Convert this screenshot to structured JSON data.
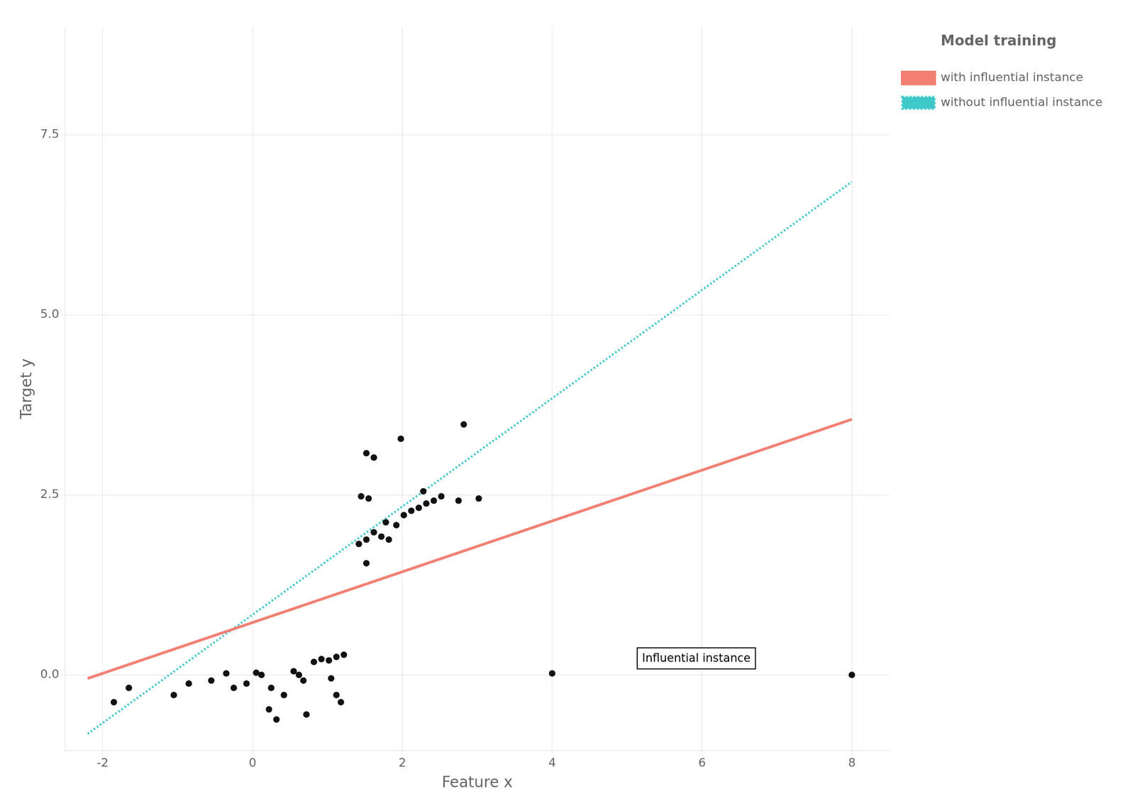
{
  "chart_data": {
    "type": "scatter",
    "xlabel": "Feature x",
    "ylabel": "Target y",
    "legend_title": "Model training",
    "legend": "right",
    "grid": true,
    "xlim": [
      -2.5,
      8.5
    ],
    "ylim": [
      -1.05,
      9.0
    ],
    "xticks": [
      -2,
      0,
      2,
      4,
      6,
      8
    ],
    "yticks": [
      {
        "value": 0,
        "label": "0.0"
      },
      2.5,
      {
        "value": 5,
        "label": "5.0"
      },
      7.5
    ],
    "series": [
      {
        "type": "scatter",
        "color": "#111111",
        "marker": "circle",
        "values": [
          [
            -1.85,
            -0.38
          ],
          [
            -1.65,
            -0.18
          ],
          [
            -1.05,
            -0.28
          ],
          [
            -0.85,
            -0.12
          ],
          [
            -0.55,
            -0.08
          ],
          [
            -0.35,
            0.02
          ],
          [
            -0.25,
            -0.18
          ],
          [
            -0.08,
            -0.12
          ],
          [
            0.05,
            0.03
          ],
          [
            0.12,
            0.0
          ],
          [
            0.55,
            0.05
          ],
          [
            0.62,
            0.0
          ],
          [
            0.25,
            -0.18
          ],
          [
            0.42,
            -0.28
          ],
          [
            0.68,
            -0.08
          ],
          [
            0.72,
            -0.55
          ],
          [
            0.22,
            -0.48
          ],
          [
            0.32,
            -0.62
          ],
          [
            1.05,
            -0.05
          ],
          [
            1.12,
            -0.28
          ],
          [
            1.18,
            -0.38
          ],
          [
            0.82,
            0.18
          ],
          [
            0.92,
            0.22
          ],
          [
            1.02,
            0.2
          ],
          [
            1.12,
            0.25
          ],
          [
            1.22,
            0.28
          ],
          [
            1.42,
            1.82
          ],
          [
            1.52,
            1.88
          ],
          [
            1.62,
            1.98
          ],
          [
            1.72,
            1.92
          ],
          [
            1.82,
            1.88
          ],
          [
            1.92,
            2.08
          ],
          [
            2.02,
            2.22
          ],
          [
            2.12,
            2.28
          ],
          [
            2.22,
            2.32
          ],
          [
            2.32,
            2.38
          ],
          [
            2.42,
            2.42
          ],
          [
            2.52,
            2.48
          ],
          [
            1.52,
            3.08
          ],
          [
            1.62,
            3.02
          ],
          [
            1.98,
            3.28
          ],
          [
            2.82,
            3.48
          ],
          [
            1.52,
            1.55
          ],
          [
            3.02,
            2.45
          ],
          [
            1.45,
            2.48
          ],
          [
            1.55,
            2.45
          ],
          [
            1.78,
            2.12
          ],
          [
            2.28,
            2.55
          ],
          [
            2.75,
            2.42
          ],
          [
            4.0,
            0.02
          ],
          [
            8.0,
            0.0
          ]
        ]
      },
      {
        "type": "line",
        "name": "with influential instance",
        "color": "#f28072",
        "line_style": "solid",
        "values": [
          [
            -2.2,
            -0.05
          ],
          [
            8.0,
            3.55
          ]
        ]
      },
      {
        "type": "line",
        "name": "without influential instance",
        "color": "#3ec8c8",
        "line_style": "dotted",
        "values": [
          [
            -2.2,
            -0.82
          ],
          [
            8.0,
            6.85
          ]
        ]
      }
    ],
    "annotations": [
      {
        "text": "Influential instance",
        "x": 5.2,
        "y": 0.18
      }
    ]
  }
}
